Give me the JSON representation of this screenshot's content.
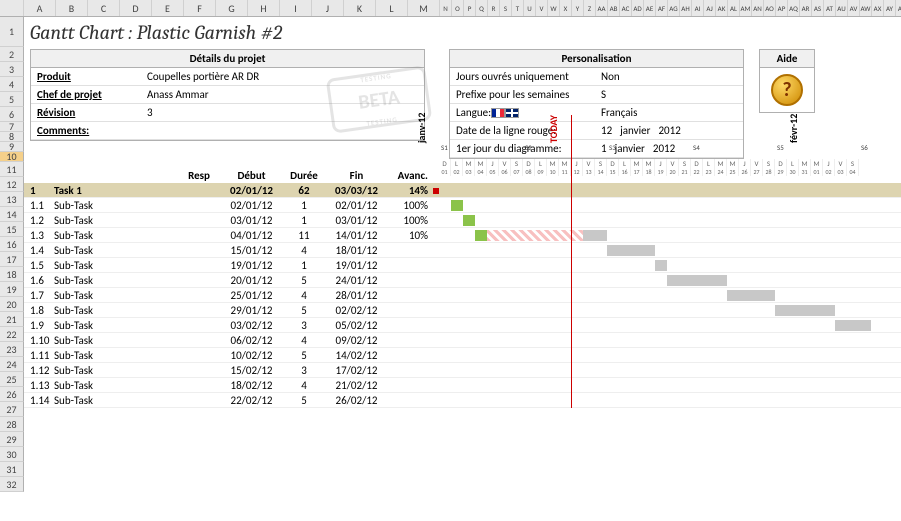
{
  "title": "Gantt Chart : Plastic Garnish #2",
  "cols_wide": [
    "A",
    "B",
    "C",
    "D",
    "E",
    "F",
    "G",
    "H",
    "I",
    "J",
    "K",
    "L",
    "M"
  ],
  "cols_narrow": [
    "N",
    "O",
    "P",
    "Q",
    "R",
    "S",
    "T",
    "U",
    "V",
    "W",
    "X",
    "Y",
    "Z",
    "AA",
    "AB",
    "AC",
    "AD",
    "AE",
    "AF",
    "AG",
    "AH",
    "AI",
    "AJ",
    "AK",
    "AL",
    "AM",
    "AN",
    "AO",
    "AP",
    "AQ",
    "AR",
    "AS",
    "AT",
    "AU",
    "AV",
    "AW",
    "AX",
    "AY",
    "AZ"
  ],
  "rows": [
    1,
    2,
    3,
    4,
    5,
    6,
    7,
    8,
    9,
    10,
    11,
    12,
    13,
    14,
    15,
    16,
    17,
    18,
    19,
    20,
    21,
    22,
    23,
    24,
    25,
    26,
    27,
    28,
    29,
    30,
    31,
    32
  ],
  "active_row": 10,
  "details": {
    "header": "Détails du projet",
    "rows": [
      {
        "label": "Produit",
        "value": "Coupelles portière AR DR"
      },
      {
        "label": "Chef de projet",
        "value": "Anass Ammar"
      },
      {
        "label": "Révision",
        "value": "3"
      },
      {
        "label": "Comments:",
        "value": ""
      }
    ]
  },
  "beta": "BETA",
  "perso": {
    "header": "Personalisation",
    "rows": [
      {
        "label": "Jours ouvrés uniquement",
        "v1": "Non"
      },
      {
        "label": "Prefixe pour les semaines",
        "v1": "S"
      },
      {
        "label": "Langue:",
        "v1": "Français",
        "flags": true
      },
      {
        "label": "Date de la ligne rouge:",
        "v1": "12",
        "v2": "janvier",
        "v3": "2012"
      },
      {
        "label": "1er jour du diagramme:",
        "v1": "1",
        "v2": "janvier",
        "v3": "2012"
      }
    ]
  },
  "aide": {
    "header": "Aide"
  },
  "task_headers": {
    "resp": "Resp",
    "debut": "Début",
    "duree": "Durée",
    "fin": "Fin",
    "avanc": "Avanc."
  },
  "timeline": {
    "month1": "janv-12",
    "month2": "févr-12",
    "today": "TODAY",
    "today_day_index": 11,
    "weeks": [
      "S1",
      "S2",
      "S3",
      "S4",
      "S5",
      "S6"
    ],
    "days": [
      "D",
      "L",
      "M",
      "M",
      "J",
      "V",
      "S",
      "D",
      "L",
      "M",
      "M",
      "J",
      "V",
      "S",
      "D",
      "L",
      "M",
      "M",
      "J",
      "V",
      "S",
      "D",
      "L",
      "M",
      "M",
      "J",
      "V",
      "S",
      "D",
      "L",
      "M",
      "M",
      "J",
      "V",
      "S"
    ],
    "daynums": [
      "01",
      "02",
      "03",
      "04",
      "05",
      "06",
      "07",
      "08",
      "09",
      "10",
      "11",
      "12",
      "13",
      "14",
      "15",
      "16",
      "17",
      "18",
      "19",
      "20",
      "21",
      "22",
      "23",
      "24",
      "25",
      "26",
      "27",
      "28",
      "29",
      "30",
      "31",
      "01",
      "02",
      "03",
      "04"
    ]
  },
  "tasks": [
    {
      "id": "1",
      "name": "Task 1",
      "debut": "02/01/12",
      "duree": "62",
      "fin": "03/03/12",
      "avanc": "14%",
      "summary": true
    },
    {
      "id": "1.1",
      "name": "Sub-Task",
      "debut": "02/01/12",
      "duree": "1",
      "fin": "02/01/12",
      "avanc": "100%",
      "bar_start": 1,
      "bar_len": 1,
      "done": 1
    },
    {
      "id": "1.2",
      "name": "Sub-Task",
      "debut": "03/01/12",
      "duree": "1",
      "fin": "03/01/12",
      "avanc": "100%",
      "bar_start": 2,
      "bar_len": 1,
      "done": 1
    },
    {
      "id": "1.3",
      "name": "Sub-Task",
      "debut": "04/01/12",
      "duree": "11",
      "fin": "14/01/12",
      "avanc": "10%",
      "bar_start": 3,
      "bar_len": 11,
      "done": 1,
      "progress": 8,
      "todo": 2
    },
    {
      "id": "1.4",
      "name": "Sub-Task",
      "debut": "15/01/12",
      "duree": "4",
      "fin": "18/01/12",
      "avanc": "",
      "bar_start": 14,
      "bar_len": 4,
      "todo": 4
    },
    {
      "id": "1.5",
      "name": "Sub-Task",
      "debut": "19/01/12",
      "duree": "1",
      "fin": "19/01/12",
      "avanc": "",
      "bar_start": 18,
      "bar_len": 1,
      "todo": 1
    },
    {
      "id": "1.6",
      "name": "Sub-Task",
      "debut": "20/01/12",
      "duree": "5",
      "fin": "24/01/12",
      "avanc": "",
      "bar_start": 19,
      "bar_len": 5,
      "todo": 5
    },
    {
      "id": "1.7",
      "name": "Sub-Task",
      "debut": "25/01/12",
      "duree": "4",
      "fin": "28/01/12",
      "avanc": "",
      "bar_start": 24,
      "bar_len": 4,
      "todo": 4
    },
    {
      "id": "1.8",
      "name": "Sub-Task",
      "debut": "29/01/12",
      "duree": "5",
      "fin": "02/02/12",
      "avanc": "",
      "bar_start": 28,
      "bar_len": 5,
      "todo": 5
    },
    {
      "id": "1.9",
      "name": "Sub-Task",
      "debut": "03/02/12",
      "duree": "3",
      "fin": "05/02/12",
      "avanc": "",
      "bar_start": 33,
      "bar_len": 3,
      "todo": 3
    },
    {
      "id": "1.10",
      "name": "Sub-Task",
      "debut": "06/02/12",
      "duree": "4",
      "fin": "09/02/12",
      "avanc": ""
    },
    {
      "id": "1.11",
      "name": "Sub-Task",
      "debut": "10/02/12",
      "duree": "5",
      "fin": "14/02/12",
      "avanc": ""
    },
    {
      "id": "1.12",
      "name": "Sub-Task",
      "debut": "15/02/12",
      "duree": "3",
      "fin": "17/02/12",
      "avanc": ""
    },
    {
      "id": "1.13",
      "name": "Sub-Task",
      "debut": "18/02/12",
      "duree": "4",
      "fin": "21/02/12",
      "avanc": ""
    },
    {
      "id": "1.14",
      "name": "Sub-Task",
      "debut": "22/02/12",
      "duree": "5",
      "fin": "26/02/12",
      "avanc": ""
    }
  ]
}
